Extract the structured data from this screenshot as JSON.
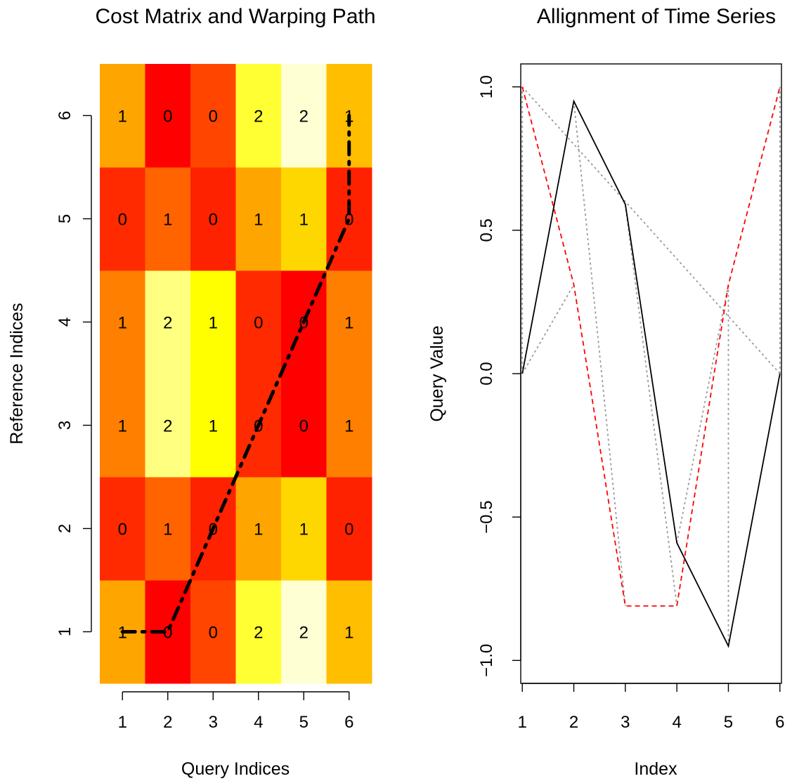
{
  "chart_data": [
    {
      "type": "heatmap",
      "title": "Cost Matrix and Warping Path",
      "xlabel": "Query Indices",
      "ylabel": "Reference Indices",
      "x_ticks": [
        "1",
        "2",
        "3",
        "4",
        "5",
        "6"
      ],
      "y_ticks": [
        "1",
        "2",
        "3",
        "4",
        "5",
        "6"
      ],
      "xlim": [
        0.5,
        6.5
      ],
      "ylim": [
        0.5,
        6.5
      ],
      "cell_values": [
        [
          1,
          0,
          0,
          2,
          2,
          1
        ],
        [
          0,
          1,
          0,
          1,
          1,
          0
        ],
        [
          1,
          2,
          1,
          0,
          0,
          1
        ],
        [
          1,
          2,
          1,
          0,
          0,
          1
        ],
        [
          0,
          1,
          0,
          1,
          1,
          0
        ],
        [
          1,
          0,
          0,
          2,
          2,
          1
        ]
      ],
      "cell_colors": [
        [
          "#FFA500",
          "#FF0000",
          "#FF4500",
          "#FFFF33",
          "#FFFFD4",
          "#FFBE00"
        ],
        [
          "#FF2A00",
          "#FF6400",
          "#FF2200",
          "#FFA500",
          "#FFD700",
          "#FF2200"
        ],
        [
          "#FF7F00",
          "#FFFF80",
          "#FFFF00",
          "#FF2A00",
          "#FF0000",
          "#FF7F00"
        ],
        [
          "#FF7F00",
          "#FFFF80",
          "#FFFF00",
          "#FF2A00",
          "#FF0000",
          "#FF7F00"
        ],
        [
          "#FF2A00",
          "#FF6400",
          "#FF2200",
          "#FFA500",
          "#FFD700",
          "#FF2200"
        ],
        [
          "#FFA500",
          "#FF0000",
          "#FF4500",
          "#FFFF33",
          "#FFFFD4",
          "#FFBE00"
        ]
      ],
      "warping_path": {
        "x": [
          1,
          2,
          3,
          4,
          5,
          6,
          6
        ],
        "y": [
          1,
          1,
          2,
          3,
          4,
          5,
          6
        ],
        "color": "#000000",
        "style": "dashed"
      }
    },
    {
      "type": "line",
      "title": "Allignment of Time Series",
      "xlabel": "Index",
      "ylabel": "Query Value",
      "x": [
        1,
        2,
        3,
        4,
        5,
        6
      ],
      "xlim": [
        0.97,
        6.03
      ],
      "ylim": [
        -1.08,
        1.08
      ],
      "x_ticks": [
        "1",
        "2",
        "3",
        "4",
        "5",
        "6"
      ],
      "y_ticks": [
        "-1.0",
        "-0.5",
        "0.0",
        "0.5",
        "1.0"
      ],
      "y_tick_values": [
        -1.0,
        -0.5,
        0.0,
        0.5,
        1.0
      ],
      "series": [
        {
          "values": [
            0.0,
            0.95,
            0.59,
            -0.59,
            -0.95,
            0.0
          ],
          "color": "#000000",
          "style": "solid"
        },
        {
          "values": [
            1.0,
            0.31,
            -0.81,
            -0.81,
            0.31,
            1.0
          ],
          "color": "#FF0000",
          "style": "dashed"
        }
      ],
      "alignment_links": {
        "query_index": [
          1,
          1,
          2,
          3,
          4,
          5,
          6,
          6
        ],
        "reference_index": [
          1,
          2,
          3,
          4,
          5,
          5,
          6,
          1
        ],
        "color": "#999999",
        "style": "dotted"
      }
    }
  ]
}
